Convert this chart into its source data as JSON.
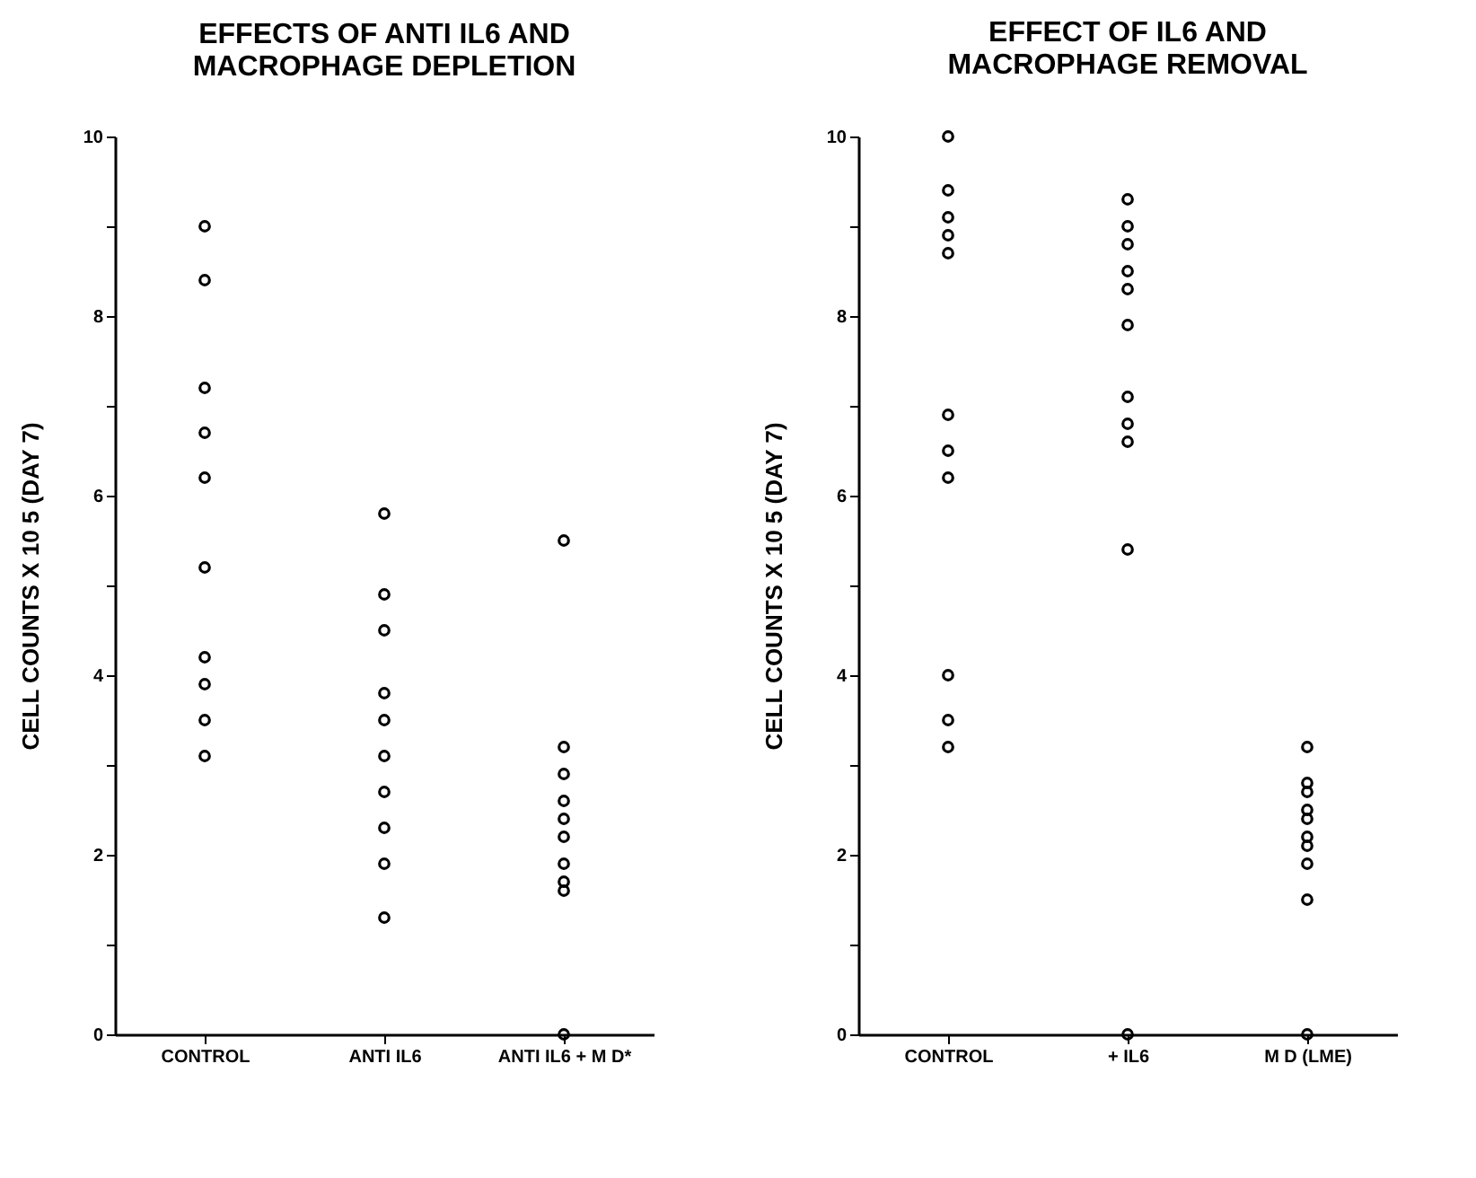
{
  "chart_data": [
    {
      "type": "scatter",
      "title": "EFFECTS OF ANTI IL6 AND MACROPHAGE DEPLETION",
      "ylabel": "CELL COUNTS X 10 5 (DAY 7)",
      "categories": [
        "CONTROL",
        "ANTI  IL6",
        "ANTI  IL6 + M D*"
      ],
      "ylim": [
        0,
        10
      ],
      "yticks": [
        0,
        {
          "value": 1,
          "label": null
        },
        2,
        {
          "value": 3,
          "label": null
        },
        4,
        {
          "value": 5,
          "label": null
        },
        6,
        {
          "value": 7,
          "label": null
        },
        8,
        {
          "value": 9,
          "label": null
        },
        10
      ],
      "grid": false,
      "marker": "circle",
      "series": [
        {
          "color": "#000000",
          "x": [
            "CONTROL",
            "CONTROL",
            "CONTROL",
            "CONTROL",
            "CONTROL",
            "CONTROL",
            "CONTROL",
            "CONTROL",
            "CONTROL",
            "CONTROL",
            "ANTI  IL6",
            "ANTI  IL6",
            "ANTI  IL6",
            "ANTI  IL6",
            "ANTI  IL6",
            "ANTI  IL6",
            "ANTI  IL6",
            "ANTI  IL6",
            "ANTI  IL6",
            "ANTI  IL6",
            "ANTI  IL6 + M D*",
            "ANTI  IL6 + M D*",
            "ANTI  IL6 + M D*",
            "ANTI  IL6 + M D*",
            "ANTI  IL6 + M D*",
            "ANTI  IL6 + M D*",
            "ANTI  IL6 + M D*",
            "ANTI  IL6 + M D*",
            "ANTI  IL6 + M D*",
            "ANTI  IL6 + M D*"
          ],
          "values": [
            9.0,
            8.4,
            7.2,
            6.7,
            6.2,
            5.2,
            4.2,
            3.9,
            3.5,
            3.1,
            5.8,
            4.9,
            4.5,
            3.8,
            3.5,
            3.1,
            2.7,
            2.3,
            1.9,
            1.3,
            5.5,
            3.2,
            2.9,
            2.6,
            2.4,
            2.2,
            1.9,
            1.7,
            1.6,
            0
          ]
        }
      ]
    },
    {
      "type": "scatter",
      "title": "EFFECT OF IL6 AND MACROPHAGE REMOVAL",
      "ylabel": "CELL COUNTS X 10 5 (DAY 7)",
      "categories": [
        "CONTROL",
        "+  IL6",
        "M  D  (LME)"
      ],
      "ylim": [
        0,
        10
      ],
      "yticks": [
        0,
        {
          "value": 1,
          "label": null
        },
        2,
        {
          "value": 3,
          "label": null
        },
        4,
        {
          "value": 5,
          "label": null
        },
        6,
        {
          "value": 7,
          "label": null
        },
        8,
        {
          "value": 9,
          "label": null
        },
        10
      ],
      "grid": false,
      "marker": "circle",
      "series": [
        {
          "color": "#000000",
          "x": [
            "CONTROL",
            "CONTROL",
            "CONTROL",
            "CONTROL",
            "CONTROL",
            "CONTROL",
            "CONTROL",
            "CONTROL",
            "CONTROL",
            "CONTROL",
            "CONTROL",
            "+  IL6",
            "+  IL6",
            "+  IL6",
            "+  IL6",
            "+  IL6",
            "+  IL6",
            "+  IL6",
            "+  IL6",
            "+  IL6",
            "+  IL6",
            "+  IL6",
            "M  D  (LME)",
            "M  D  (LME)",
            "M  D  (LME)",
            "M  D  (LME)",
            "M  D  (LME)",
            "M  D  (LME)",
            "M  D  (LME)",
            "M  D  (LME)",
            "M  D  (LME)",
            "M  D  (LME)"
          ],
          "values": [
            10,
            9.4,
            9.1,
            8.9,
            8.7,
            6.9,
            6.5,
            6.2,
            4.0,
            3.5,
            3.2,
            9.3,
            9.0,
            8.8,
            8.5,
            8.3,
            7.9,
            7.1,
            6.8,
            6.6,
            5.4,
            0,
            3.2,
            2.8,
            2.7,
            2.5,
            2.4,
            2.2,
            2.1,
            1.9,
            1.5,
            0
          ]
        }
      ]
    }
  ]
}
